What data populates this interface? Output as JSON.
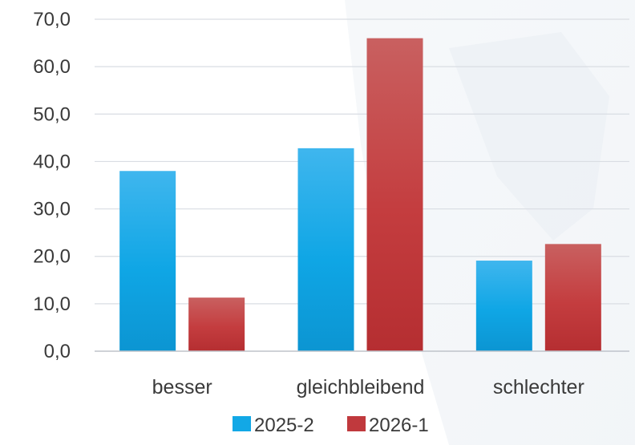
{
  "chart_data": {
    "type": "bar",
    "title": "",
    "xlabel": "",
    "ylabel": "",
    "categories": [
      "besser",
      "gleichbleibend",
      "schlechter"
    ],
    "series": [
      {
        "name": "2025-2",
        "values": [
          38.0,
          42.8,
          19.1
        ],
        "color": "#12a8e6"
      },
      {
        "name": "2026-1",
        "values": [
          11.3,
          66.0,
          22.6
        ],
        "color": "#c0393d"
      }
    ],
    "ylim": [
      0,
      70
    ],
    "yticks": [
      0,
      10,
      20,
      30,
      40,
      50,
      60,
      70
    ],
    "ytick_labels": [
      "0,0",
      "10,0",
      "20,0",
      "30,0",
      "40,0",
      "50,0",
      "60,0",
      "70,0"
    ],
    "grid": true,
    "legend": "bottom-center"
  }
}
